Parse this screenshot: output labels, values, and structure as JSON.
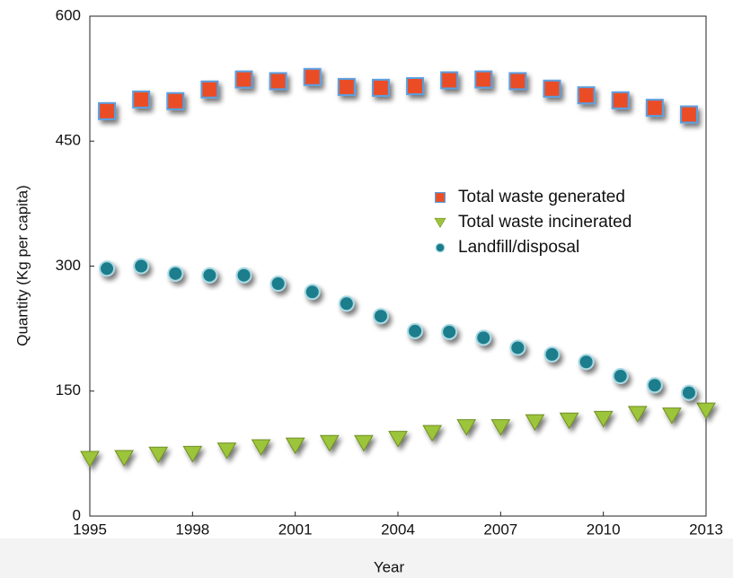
{
  "chart_data": {
    "type": "scatter",
    "x_label": "Year",
    "y_label": "Quantity (Kg per capita)",
    "xlim": [
      1995,
      2013
    ],
    "xticks": [
      1995,
      1998,
      2001,
      2004,
      2007,
      2010,
      2013
    ],
    "ylim": [
      0,
      600
    ],
    "yticks": [
      0,
      150,
      300,
      450,
      600
    ],
    "series": [
      {
        "name": "Total waste generated",
        "color": "#ea4e26",
        "marker": "square",
        "x": [
          1995.5,
          1996.5,
          1997.5,
          1998.5,
          1999.5,
          2000.5,
          2001.5,
          2002.5,
          2003.5,
          2004.5,
          2005.5,
          2006.5,
          2007.5,
          2008.5,
          2009.5,
          2010.5,
          2011.5,
          2012.5
        ],
        "values": [
          486,
          500,
          498,
          512,
          524,
          522,
          527,
          515,
          514,
          516,
          523,
          524,
          522,
          513,
          505,
          499,
          490,
          482
        ]
      },
      {
        "name": "Total waste incinerated",
        "color": "#9cc53b",
        "marker": "triangle",
        "x": [
          1995,
          1996,
          1997,
          1998,
          1999,
          2000,
          2001,
          2002,
          2003,
          2004,
          2005,
          2006,
          2007,
          2008,
          2009,
          2010,
          2011,
          2012,
          2013
        ],
        "values": [
          69,
          70,
          74,
          75,
          79,
          83,
          85,
          88,
          88,
          93,
          100,
          107,
          107,
          113,
          115,
          117,
          123,
          121,
          127
        ]
      },
      {
        "name": "Landfill/disposal",
        "color": "#1b7d8c",
        "marker": "circle",
        "x": [
          1995.5,
          1996.5,
          1997.5,
          1998.5,
          1999.5,
          2000.5,
          2001.5,
          2002.5,
          2003.5,
          2004.5,
          2005.5,
          2006.5,
          2007.5,
          2008.5,
          2009.5,
          2010.5,
          2011.5,
          2012.5
        ],
        "values": [
          297,
          300,
          291,
          289,
          289,
          279,
          269,
          255,
          240,
          222,
          221,
          214,
          202,
          194,
          185,
          168,
          157,
          148
        ]
      }
    ]
  }
}
